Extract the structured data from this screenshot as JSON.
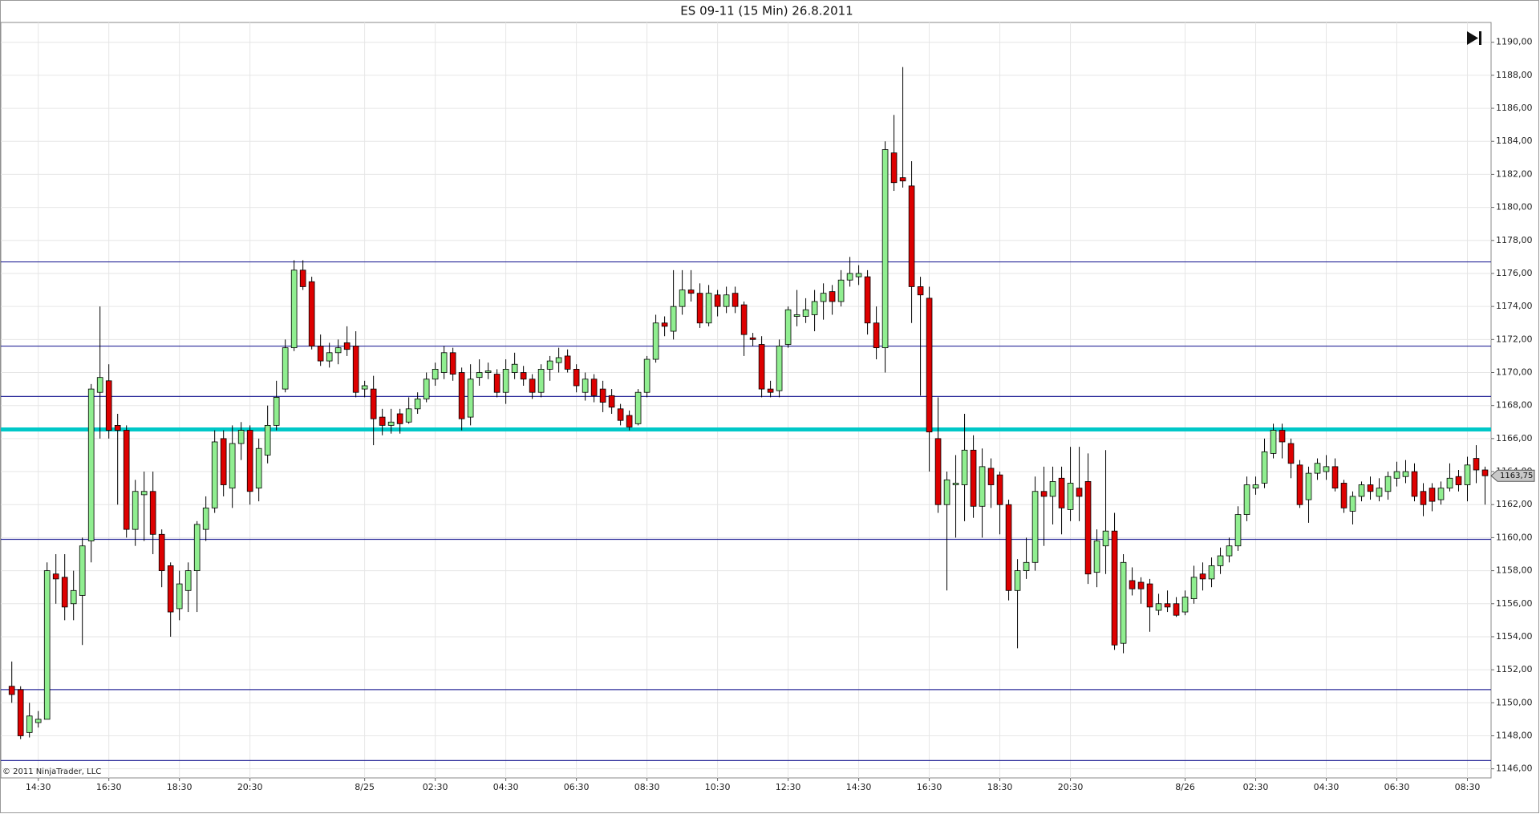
{
  "chart_data": {
    "type": "candlestick",
    "title": "ES 09-11 (15 Min)  26.8.2011",
    "credit": "© 2011 NinjaTrader, LLC",
    "categories": [
      null,
      null,
      null,
      "14:30",
      null,
      null,
      null,
      null,
      null,
      null,
      null,
      "16:30",
      null,
      null,
      null,
      null,
      null,
      null,
      null,
      "18:30",
      null,
      null,
      null,
      null,
      null,
      null,
      null,
      "20:30",
      null,
      null,
      null,
      null,
      null,
      null,
      null,
      null,
      null,
      null,
      null,
      null,
      "8/25",
      null,
      null,
      null,
      null,
      null,
      null,
      null,
      "02:30",
      null,
      null,
      null,
      null,
      null,
      null,
      null,
      "04:30",
      null,
      null,
      null,
      null,
      null,
      null,
      null,
      "06:30",
      null,
      null,
      null,
      null,
      null,
      null,
      null,
      "08:30",
      null,
      null,
      null,
      null,
      null,
      null,
      null,
      "10:30",
      null,
      null,
      null,
      null,
      null,
      null,
      null,
      "12:30",
      null,
      null,
      null,
      null,
      null,
      null,
      null,
      "14:30",
      null,
      null,
      null,
      null,
      null,
      null,
      null,
      "16:30",
      null,
      null,
      null,
      null,
      null,
      null,
      null,
      "18:30",
      null,
      null,
      null,
      null,
      null,
      null,
      null,
      "20:30",
      null,
      null,
      null,
      null,
      null,
      null,
      null,
      null,
      null,
      null,
      null,
      null,
      "8/26",
      null,
      null,
      null,
      null,
      null,
      null,
      null,
      "02:30",
      null,
      null,
      null,
      null,
      null,
      null,
      null,
      "04:30",
      null,
      null,
      null,
      null,
      null,
      null,
      null,
      "06:30",
      null,
      null,
      null,
      null,
      null,
      null,
      null,
      "08:30",
      null,
      null
    ],
    "open": [
      1151,
      1150.8,
      1148.2,
      1148.8,
      1149,
      1157.8,
      1157.6,
      1156,
      1156.5,
      1159.8,
      1168.8,
      1169.5,
      1166.8,
      1166.5,
      1160.5,
      1162.6,
      1162.8,
      1160.2,
      1158.3,
      1155.7,
      1156.8,
      1158,
      1160.5,
      1161.8,
      1166,
      1163,
      1165.7,
      1166.5,
      1163,
      1165,
      1166.8,
      1169,
      1171.5,
      1176.2,
      1175.5,
      1171.6,
      1170.7,
      1171.2,
      1171.8,
      1171.6,
      1169,
      1169,
      1167.3,
      1166.8,
      1167.5,
      1167,
      1167.8,
      1168.4,
      1169.6,
      1170,
      1171.2,
      1170,
      1167.3,
      1169.7,
      1170,
      1169.9,
      1168.8,
      1170,
      1170,
      1169.6,
      1168.8,
      1170.2,
      1170.6,
      1171,
      1170.2,
      1168.8,
      1169.6,
      1169,
      1168.6,
      1167.8,
      1167.4,
      1166.9,
      1168.8,
      1170.8,
      1173,
      1172.5,
      1174,
      1175,
      1174.8,
      1173,
      1174.7,
      1174,
      1174.8,
      1174.1,
      1172.1,
      1171.7,
      1169,
      1168.9,
      1171.7,
      1173.4,
      1173.4,
      1173.5,
      1174.3,
      1174.9,
      1174.3,
      1175.6,
      1175.8,
      1175.8,
      1173,
      1171.5,
      1183.3,
      1181.8,
      1181.3,
      1175.2,
      1174.5,
      1166,
      1162,
      1163.2,
      1163.2,
      1165.3,
      1161.9,
      1164.2,
      1163.8,
      1162,
      1156.8,
      1158,
      1158.5,
      1162.8,
      1162.5,
      1163.6,
      1161.7,
      1163,
      1163.4,
      1157.9,
      1159.5,
      1160.4,
      1153.6,
      1157.4,
      1157.3,
      1157.2,
      1155.6,
      1156,
      1156,
      1155.5,
      1156.3,
      1157.8,
      1157.5,
      1158.3,
      1158.9,
      1159.5,
      1161.4,
      1163,
      1163.3,
      1165.1,
      1166.5,
      1165.7,
      1164.4,
      1162.3,
      1163.9,
      1164,
      1164.3,
      1163.3,
      1161.6,
      1162.5,
      1163.2,
      1162.5,
      1162.8,
      1163.6,
      1163.7,
      1164,
      1162.8,
      1163,
      1162.3,
      1163,
      1163.7,
      1163.2,
      1164.8,
      1164.1
    ],
    "high": [
      1152.5,
      1151,
      1150,
      1149.5,
      1158.5,
      1159,
      1159,
      1158,
      1160,
      1169.3,
      1174,
      1170.5,
      1167.5,
      1166.8,
      1163.5,
      1164,
      1164,
      1160.5,
      1158.5,
      1158,
      1158.5,
      1161,
      1162.5,
      1166.5,
      1166.5,
      1166.8,
      1167,
      1166.8,
      1166,
      1168,
      1169.5,
      1172,
      1176.8,
      1176.8,
      1175.8,
      1172.3,
      1171.8,
      1172,
      1172.8,
      1172.5,
      1169.5,
      1169.8,
      1167.8,
      1167.8,
      1167.8,
      1168.5,
      1168.8,
      1170,
      1170.6,
      1171.6,
      1171.5,
      1170.3,
      1170.5,
      1170.8,
      1170.6,
      1170.2,
      1170.8,
      1171.2,
      1170.4,
      1169.9,
      1170.5,
      1171,
      1171.5,
      1171.4,
      1170.5,
      1170,
      1169.9,
      1169.5,
      1169,
      1168.1,
      1167.7,
      1169,
      1171,
      1173.5,
      1173.4,
      1176.2,
      1176.2,
      1176.2,
      1175.4,
      1175.3,
      1175,
      1175.2,
      1175.2,
      1174.3,
      1172.4,
      1172.2,
      1169.5,
      1172,
      1174,
      1175,
      1174.5,
      1175,
      1175.4,
      1175.3,
      1176.2,
      1177,
      1176.5,
      1176.2,
      1174,
      1184,
      1185.6,
      1188.5,
      1182.8,
      1175.8,
      1175.2,
      1168.5,
      1164,
      1165,
      1167.5,
      1166.2,
      1165.4,
      1164.8,
      1164,
      1162.3,
      1158.7,
      1160,
      1163.7,
      1164.3,
      1164.3,
      1164.3,
      1165.5,
      1165.5,
      1165.1,
      1160.5,
      1165.3,
      1161.5,
      1159,
      1158.2,
      1157.6,
      1157.5,
      1156.6,
      1156.8,
      1156.4,
      1156.8,
      1158.3,
      1158.5,
      1158.8,
      1159.4,
      1160,
      1161.9,
      1163.7,
      1163.7,
      1166,
      1166.9,
      1166.9,
      1166,
      1164.7,
      1164.3,
      1164.8,
      1165,
      1164.8,
      1163.5,
      1162.8,
      1163.4,
      1163.7,
      1163.6,
      1164,
      1164.6,
      1164.7,
      1164.5,
      1163.3,
      1163.3,
      1163.4,
      1164.5,
      1164.1,
      1164.9,
      1165.6,
      1164.3
    ],
    "low": [
      1150,
      1147.8,
      1147.9,
      1148.5,
      1149,
      1156,
      1155,
      1155,
      1153.5,
      1158.5,
      1166,
      1166,
      1162,
      1160,
      1159.5,
      1159.8,
      1159,
      1157,
      1154,
      1155,
      1155.5,
      1155.5,
      1159.8,
      1161.5,
      1162.5,
      1161.8,
      1164.7,
      1162,
      1162.2,
      1164.5,
      1166.5,
      1168.8,
      1171.3,
      1175,
      1171.4,
      1170.4,
      1170.3,
      1170.5,
      1171,
      1168.5,
      1168.5,
      1165.6,
      1166.2,
      1166.3,
      1166.3,
      1166.9,
      1167.5,
      1168.2,
      1169.2,
      1169.6,
      1169.5,
      1166.5,
      1166.8,
      1169.2,
      1169.6,
      1168.5,
      1168.1,
      1169.6,
      1169.2,
      1168.4,
      1168.5,
      1169.5,
      1170,
      1170,
      1168.8,
      1168.3,
      1168.2,
      1167.6,
      1167.5,
      1166.8,
      1166.5,
      1166.8,
      1168.5,
      1170.6,
      1172.2,
      1172,
      1173.5,
      1174.3,
      1172.7,
      1172.8,
      1173.4,
      1173.6,
      1173.6,
      1171,
      1171.6,
      1168.5,
      1168.5,
      1168.5,
      1171.5,
      1172.8,
      1173,
      1172.5,
      1173.2,
      1173.5,
      1174,
      1175.2,
      1175.3,
      1172.3,
      1170.8,
      1170,
      1181,
      1181.2,
      1173,
      1168.6,
      1164,
      1161.5,
      1156.8,
      1160,
      1161,
      1161.2,
      1160,
      1161.8,
      1160.2,
      1156.2,
      1153.3,
      1157.5,
      1158,
      1159.5,
      1160.8,
      1160.2,
      1161,
      1161,
      1157.2,
      1157,
      1157.8,
      1153.2,
      1153,
      1156.5,
      1156,
      1154.3,
      1155.3,
      1155.5,
      1155.2,
      1155.3,
      1156,
      1156.8,
      1157,
      1157.8,
      1158.5,
      1159.2,
      1161,
      1162.6,
      1163,
      1164.8,
      1164.8,
      1163.6,
      1161.8,
      1160.9,
      1163.5,
      1163.5,
      1162.8,
      1161.5,
      1160.8,
      1162.2,
      1162.3,
      1162.2,
      1162.3,
      1163.1,
      1163.3,
      1162.2,
      1161.3,
      1161.6,
      1162,
      1162.8,
      1162.8,
      1162.2,
      1163.3,
      1162
    ],
    "close": [
      1150.5,
      1148,
      1149.2,
      1149,
      1158,
      1157.5,
      1155.8,
      1156.8,
      1159.5,
      1169,
      1169.7,
      1166.5,
      1166.5,
      1160.5,
      1162.8,
      1162.8,
      1160.2,
      1158,
      1155.5,
      1157.2,
      1158,
      1160.8,
      1161.8,
      1165.8,
      1163.2,
      1165.7,
      1166.5,
      1162.8,
      1165.4,
      1166.8,
      1168.5,
      1171.5,
      1176.2,
      1175.2,
      1171.6,
      1170.7,
      1171.2,
      1171.5,
      1171.4,
      1168.8,
      1169.2,
      1167.2,
      1166.8,
      1167,
      1166.9,
      1167.8,
      1168.4,
      1169.6,
      1170.2,
      1171.2,
      1169.9,
      1167.2,
      1169.6,
      1170,
      1170.1,
      1168.8,
      1170.2,
      1170.5,
      1169.6,
      1168.8,
      1170.2,
      1170.7,
      1170.9,
      1170.2,
      1169.2,
      1169.6,
      1168.6,
      1168.2,
      1167.9,
      1167.1,
      1166.7,
      1168.8,
      1170.8,
      1173,
      1172.8,
      1174,
      1175,
      1174.8,
      1173,
      1174.8,
      1174,
      1174.7,
      1174,
      1172.3,
      1172,
      1169,
      1168.8,
      1171.6,
      1173.8,
      1173.5,
      1173.8,
      1174.3,
      1174.8,
      1174.3,
      1175.6,
      1176,
      1176,
      1173,
      1171.5,
      1183.5,
      1181.5,
      1181.6,
      1175.2,
      1174.7,
      1166.4,
      1162,
      1163.5,
      1163.3,
      1165.3,
      1161.9,
      1164.3,
      1163.2,
      1162,
      1156.8,
      1158,
      1158.5,
      1162.8,
      1162.5,
      1163.4,
      1161.8,
      1163.3,
      1162.5,
      1157.8,
      1159.8,
      1160.4,
      1153.5,
      1158.5,
      1156.9,
      1156.9,
      1155.8,
      1156,
      1155.8,
      1155.3,
      1156.4,
      1157.6,
      1157.5,
      1158.3,
      1158.9,
      1159.5,
      1161.4,
      1163.2,
      1163.2,
      1165.2,
      1166.5,
      1165.8,
      1164.5,
      1162,
      1163.9,
      1164.5,
      1164.3,
      1163,
      1161.8,
      1162.5,
      1163.2,
      1162.8,
      1163,
      1163.7,
      1164,
      1164,
      1162.5,
      1162,
      1162.2,
      1163,
      1163.6,
      1163.2,
      1164.4,
      1164.1,
      1163.75
    ],
    "up_color": "#90ee90",
    "down_color": "#dd0000",
    "levels": [
      {
        "value": 1176.7,
        "color": "#2a2a9a"
      },
      {
        "value": 1171.6,
        "color": "#2a2a9a"
      },
      {
        "value": 1168.55,
        "color": "#2a2a9a"
      },
      {
        "value": 1159.9,
        "color": "#2a2a9a"
      },
      {
        "value": 1150.8,
        "color": "#2a2a9a"
      },
      {
        "value": 1146.5,
        "color": "#2a2a9a"
      }
    ],
    "key_level": {
      "value": 1166.55,
      "color": "#00c8c8"
    },
    "last_price": {
      "value": 1163.75,
      "label": "1163,75"
    },
    "ylim": [
      1145.45,
      1191.2
    ],
    "yticks": [
      {
        "value": 1146,
        "label": "1146,00"
      },
      {
        "value": 1148,
        "label": "1148,00"
      },
      {
        "value": 1150,
        "label": "1150,00"
      },
      {
        "value": 1152,
        "label": "1152,00"
      },
      {
        "value": 1154,
        "label": "1154,00"
      },
      {
        "value": 1156,
        "label": "1156,00"
      },
      {
        "value": 1158,
        "label": "1158,00"
      },
      {
        "value": 1160,
        "label": "1160,00"
      },
      {
        "value": 1162,
        "label": "1162,00"
      },
      {
        "value": 1164,
        "label": "1164,00"
      },
      {
        "value": 1166,
        "label": "1166,00"
      },
      {
        "value": 1168,
        "label": "1168,00"
      },
      {
        "value": 1170,
        "label": "1170,00"
      },
      {
        "value": 1172,
        "label": "1172,00"
      },
      {
        "value": 1174,
        "label": "1174,00"
      },
      {
        "value": 1176,
        "label": "1176,00"
      },
      {
        "value": 1178,
        "label": "1178,00"
      },
      {
        "value": 1180,
        "label": "1180,00"
      },
      {
        "value": 1182,
        "label": "1182,00"
      },
      {
        "value": 1184,
        "label": "1184,00"
      },
      {
        "value": 1186,
        "label": "1186,00"
      },
      {
        "value": 1188,
        "label": "1188,00"
      },
      {
        "value": 1190,
        "label": "1190,00"
      }
    ],
    "grid": true
  }
}
